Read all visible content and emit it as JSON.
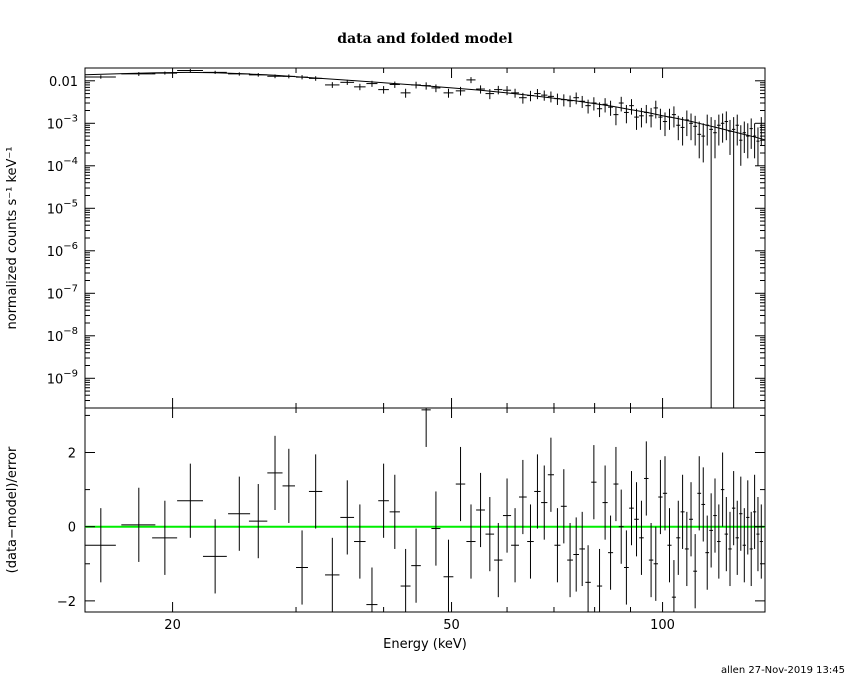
{
  "footer": "allen 27-Nov-2019 13:45",
  "colors": {
    "axes": "#000000",
    "data": "#000000",
    "model": "#000000",
    "zero_line": "#00ee00"
  },
  "chart_data": [
    {
      "type": "scatter",
      "title": "data and folded model",
      "ylabel": "normalized counts s⁻¹ keV⁻¹",
      "xscale": "log",
      "yscale": "log",
      "xlim": [
        15,
        140
      ],
      "ylim": [
        2e-10,
        0.02
      ],
      "y_ticks": [
        {
          "v": 0.01,
          "label": "0.01"
        },
        {
          "v": 0.001,
          "b": "10",
          "e": "−3"
        },
        {
          "v": 0.0001,
          "b": "10",
          "e": "−4"
        },
        {
          "v": 1e-05,
          "b": "10",
          "e": "−5"
        },
        {
          "v": 1e-06,
          "b": "10",
          "e": "−6"
        },
        {
          "v": 1e-07,
          "b": "10",
          "e": "−7"
        },
        {
          "v": 1e-08,
          "b": "10",
          "e": "−8"
        },
        {
          "v": 1e-09,
          "b": "10",
          "e": "−9"
        }
      ],
      "series": [
        {
          "role": "data",
          "x": [
            15.8,
            17.9,
            19.5,
            21.2,
            23.0,
            24.9,
            26.5,
            28.0,
            29.3,
            30.6,
            32.0,
            33.8,
            35.5,
            37.0,
            38.5,
            40.0,
            41.5,
            43.0,
            44.5,
            46.0,
            47.5,
            49.5,
            51.5,
            53.3,
            55.0,
            56.7,
            58.3,
            60.0,
            61.6,
            63.2,
            64.8,
            66.3,
            67.8,
            69.3,
            70.8,
            72.3,
            73.8,
            75.3,
            76.8,
            78.3,
            79.8,
            81.3,
            82.8,
            84.3,
            85.8,
            87.3,
            88.8,
            90.3,
            91.8,
            93.3,
            94.8,
            96.3,
            97.8,
            99.3,
            100.8,
            102.3,
            103.8,
            105.3,
            106.8,
            108.3,
            109.8,
            111.3,
            112.8,
            114.3,
            115.8,
            117.3,
            118.8,
            120.3,
            121.8,
            123.3,
            124.8,
            126.3,
            127.8,
            129.3,
            130.8,
            132.3,
            133.8,
            135.3,
            136.8,
            138.3
          ],
          "y": [
            0.0123,
            0.0145,
            0.0152,
            0.0175,
            0.0158,
            0.0145,
            0.0138,
            0.0128,
            0.0127,
            0.0122,
            0.0114,
            0.008,
            0.0092,
            0.0072,
            0.0086,
            0.0062,
            0.0082,
            0.0052,
            0.008,
            0.0077,
            0.0068,
            0.0052,
            0.0058,
            0.0105,
            0.0064,
            0.005,
            0.0062,
            0.006,
            0.0052,
            0.004,
            0.0045,
            0.005,
            0.0046,
            0.0043,
            0.0038,
            0.0036,
            0.0034,
            0.004,
            0.0033,
            0.0026,
            0.003,
            0.0022,
            0.0028,
            0.0024,
            0.0016,
            0.003,
            0.0018,
            0.0026,
            0.0014,
            0.0015,
            0.0018,
            0.0015,
            0.0023,
            0.0014,
            0.0011,
            0.0014,
            0.0016,
            0.0009,
            0.0008,
            0.0012,
            0.001,
            0.00085,
            0.00055,
            0.0005,
            0.0009,
            0.00072,
            0.0006,
            0.0009,
            0.001,
            0.0011,
            0.00065,
            0.00072,
            0.0009,
            0.0004,
            0.0006,
            0.0005,
            0.00075,
            0.0005,
            0.00038,
            0.0008
          ],
          "xerr": [
            0.8,
            1.0,
            0.8,
            0.9,
            0.9,
            0.9,
            0.8,
            0.7,
            0.6,
            0.6,
            0.7,
            0.8,
            0.8,
            0.7,
            0.7,
            0.7,
            0.7,
            0.7,
            0.7,
            0.7,
            0.7,
            0.8,
            0.8,
            0.8,
            0.8,
            0.8,
            0.8,
            0.8,
            0.8,
            0.8,
            0.7,
            0.7,
            0.7,
            0.7,
            0.7,
            0.7,
            0.7,
            0.7,
            0.7,
            0.7,
            0.7,
            0.7,
            0.7,
            0.7,
            0.7,
            0.7,
            0.7,
            0.7,
            0.7,
            0.7,
            0.7,
            0.7,
            0.7,
            0.7,
            0.7,
            0.7,
            0.7,
            0.7,
            0.7,
            0.7,
            0.7,
            0.7,
            0.7,
            0.7,
            0.7,
            0.7,
            0.7,
            0.7,
            0.7,
            0.7,
            0.7,
            0.7,
            0.7,
            0.7,
            0.7,
            0.7,
            0.7,
            0.7,
            0.7,
            0.7
          ],
          "ylo": [
            0.0112,
            0.013,
            0.014,
            0.016,
            0.0145,
            0.0132,
            0.0125,
            0.0115,
            0.0114,
            0.0108,
            0.01,
            0.0068,
            0.008,
            0.006,
            0.0072,
            0.005,
            0.0068,
            0.004,
            0.0066,
            0.0062,
            0.0054,
            0.004,
            0.0045,
            0.0088,
            0.005,
            0.0037,
            0.0048,
            0.0046,
            0.004,
            0.0029,
            0.0033,
            0.0037,
            0.0034,
            0.0031,
            0.0027,
            0.0025,
            0.0024,
            0.0028,
            0.0023,
            0.0017,
            0.002,
            0.0014,
            0.0018,
            0.0015,
            0.0009,
            0.0019,
            0.001,
            0.0016,
            0.0007,
            0.0008,
            0.001,
            0.0008,
            0.0013,
            0.0007,
            0.0005,
            0.0007,
            0.0008,
            0.0004,
            0.0003,
            0.0005,
            0.0004,
            0.0003,
            0.00015,
            0.00012,
            0.0003,
            2e-10,
            0.00015,
            0.0003,
            0.00035,
            0.0004,
            0.00018,
            2e-10,
            0.0003,
            0.0001,
            0.0002,
            0.00015,
            0.00025,
            0.00015,
            0.0001,
            0.0003
          ],
          "yhi": [
            0.0135,
            0.016,
            0.0165,
            0.019,
            0.0172,
            0.0158,
            0.0152,
            0.0141,
            0.0141,
            0.0136,
            0.0128,
            0.0093,
            0.0105,
            0.0085,
            0.01,
            0.0075,
            0.0096,
            0.0065,
            0.0095,
            0.0092,
            0.0082,
            0.0065,
            0.0072,
            0.0122,
            0.0078,
            0.0064,
            0.0076,
            0.0075,
            0.0065,
            0.0052,
            0.0058,
            0.0064,
            0.0059,
            0.0056,
            0.005,
            0.0048,
            0.0045,
            0.0053,
            0.0044,
            0.0036,
            0.0041,
            0.0031,
            0.0039,
            0.0034,
            0.0024,
            0.0042,
            0.0027,
            0.0037,
            0.0022,
            0.0023,
            0.0027,
            0.0023,
            0.0034,
            0.0022,
            0.0018,
            0.0022,
            0.0025,
            0.0015,
            0.0014,
            0.002,
            0.0017,
            0.0015,
            0.0011,
            0.001,
            0.0016,
            0.0014,
            0.0012,
            0.0016,
            0.0017,
            0.0019,
            0.0012,
            0.0014,
            0.0016,
            0.0009,
            0.0011,
            0.001,
            0.0013,
            0.001,
            0.0008,
            0.0014
          ]
        },
        {
          "role": "model",
          "x": [
            15.0,
            17.0,
            19.0,
            21.0,
            23.0,
            25.0,
            28.0,
            31.0,
            35.0,
            40.0,
            45.0,
            50.0,
            55.0,
            60.0,
            65.0,
            70.0,
            75.0,
            80.0,
            85.0,
            90.0,
            95.0,
            100.0,
            105.0,
            110.0,
            115.0,
            120.0,
            125.0,
            130.0,
            135.0,
            140.0
          ],
          "y": [
            0.0138,
            0.0148,
            0.0155,
            0.0158,
            0.0155,
            0.0148,
            0.0135,
            0.012,
            0.0105,
            0.009,
            0.0078,
            0.0068,
            0.006,
            0.0052,
            0.0045,
            0.0039,
            0.0034,
            0.0029,
            0.0025,
            0.0021,
            0.0018,
            0.0015,
            0.0013,
            0.0011,
            0.00092,
            0.00078,
            0.00066,
            0.00056,
            0.00048,
            0.00041
          ]
        }
      ]
    },
    {
      "type": "scatter",
      "xlabel": "Energy (keV)",
      "ylabel": "(data−model)/error",
      "xscale": "log",
      "xlim": [
        15,
        140
      ],
      "ylim": [
        -2.3,
        3.2
      ],
      "x_ticks": [
        {
          "v": 20,
          "label": "20"
        },
        {
          "v": 50,
          "label": "50"
        },
        {
          "v": 100,
          "label": "100"
        }
      ],
      "y_ticks": [
        {
          "v": 2,
          "label": "2"
        },
        {
          "v": 0,
          "label": "0"
        },
        {
          "v": -2,
          "label": "−2"
        }
      ],
      "zero_line": 0,
      "series": [
        {
          "role": "residuals",
          "x": [
            15.8,
            17.9,
            19.5,
            21.2,
            23.0,
            24.9,
            26.5,
            28.0,
            29.3,
            30.6,
            32.0,
            33.8,
            35.5,
            37.0,
            38.5,
            40.0,
            41.5,
            43.0,
            44.5,
            46.0,
            47.5,
            49.5,
            51.5,
            53.3,
            55.0,
            56.7,
            58.3,
            60.0,
            61.6,
            63.2,
            64.8,
            66.3,
            67.8,
            69.3,
            70.8,
            72.3,
            73.8,
            75.3,
            76.8,
            78.3,
            79.8,
            81.3,
            82.8,
            84.3,
            85.8,
            87.3,
            88.8,
            90.3,
            91.8,
            93.3,
            94.8,
            96.3,
            97.8,
            99.3,
            100.8,
            102.3,
            103.8,
            105.3,
            106.8,
            108.3,
            109.8,
            111.3,
            112.8,
            114.3,
            115.8,
            117.3,
            118.8,
            120.3,
            121.8,
            123.3,
            124.8,
            126.3,
            127.8,
            129.3,
            130.8,
            132.3,
            133.8,
            135.3,
            136.8,
            138.3
          ],
          "y": [
            -0.5,
            0.05,
            -0.3,
            0.7,
            -0.8,
            0.35,
            0.15,
            1.45,
            1.1,
            -1.1,
            0.95,
            -1.3,
            0.25,
            -0.4,
            -2.1,
            0.7,
            0.4,
            -1.6,
            -1.05,
            3.15,
            -0.05,
            -1.35,
            1.15,
            -0.4,
            0.45,
            -0.2,
            -0.9,
            0.3,
            -0.5,
            0.8,
            -0.4,
            0.95,
            0.65,
            1.4,
            -0.5,
            0.55,
            -0.9,
            -0.75,
            -0.6,
            -1.5,
            1.2,
            -1.6,
            0.65,
            -0.7,
            1.15,
            0.0,
            -1.1,
            0.5,
            0.2,
            -0.3,
            1.3,
            -0.9,
            -1.0,
            0.8,
            0.9,
            -0.5,
            -1.9,
            -0.3,
            0.4,
            -0.6,
            0.2,
            -1.2,
            0.9,
            0.6,
            -0.7,
            -0.1,
            0.3,
            -0.4,
            1.0,
            -0.2,
            -0.6,
            0.5,
            -0.3,
            0.35,
            -0.5,
            0.25,
            -0.6,
            0.4,
            -0.2,
            -0.4
          ],
          "xerr": [
            0.8,
            1.0,
            0.8,
            0.9,
            0.9,
            0.9,
            0.8,
            0.7,
            0.6,
            0.6,
            0.7,
            0.8,
            0.8,
            0.7,
            0.7,
            0.7,
            0.7,
            0.7,
            0.7,
            0.7,
            0.7,
            0.8,
            0.8,
            0.8,
            0.8,
            0.8,
            0.8,
            0.8,
            0.8,
            0.8,
            0.7,
            0.7,
            0.7,
            0.7,
            0.7,
            0.7,
            0.7,
            0.7,
            0.7,
            0.7,
            0.7,
            0.7,
            0.7,
            0.7,
            0.7,
            0.7,
            0.7,
            0.7,
            0.7,
            0.7,
            0.7,
            0.7,
            0.7,
            0.7,
            0.7,
            0.7,
            0.7,
            0.7,
            0.7,
            0.7,
            0.7,
            0.7,
            0.7,
            0.7,
            0.7,
            0.7,
            0.7,
            0.7,
            0.7,
            0.7,
            0.7,
            0.7,
            0.7,
            0.7,
            0.7,
            0.7,
            0.7,
            0.7,
            0.7,
            0.7
          ],
          "yerr": 1
        }
      ]
    }
  ]
}
